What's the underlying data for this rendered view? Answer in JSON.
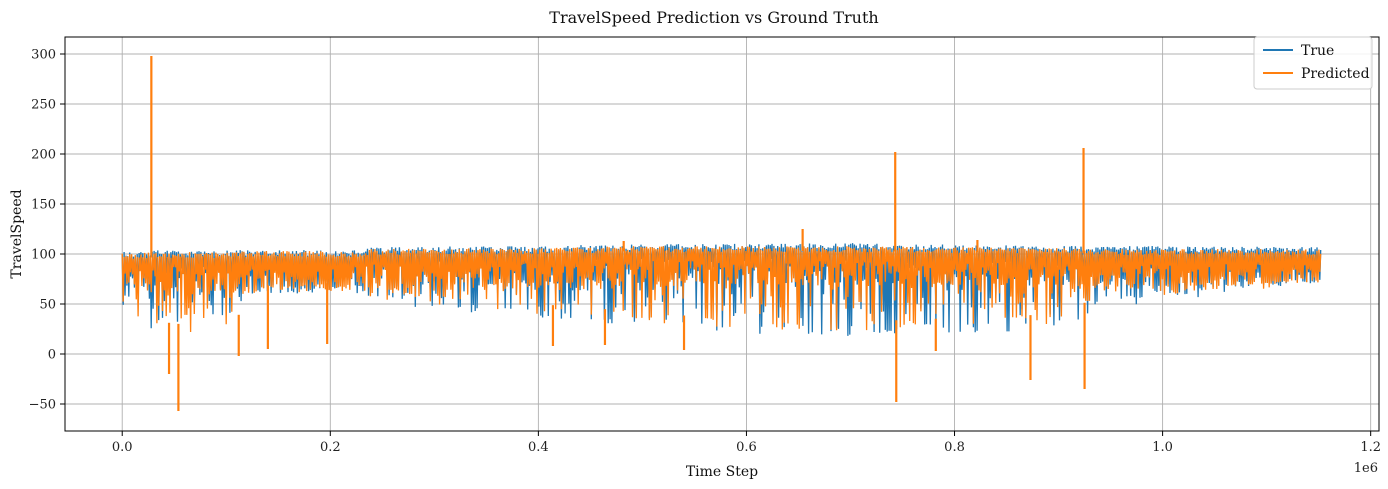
{
  "chart_data": {
    "type": "line",
    "title": "TravelSpeed Prediction vs Ground Truth",
    "xlabel": "Time Step",
    "ylabel": "TravelSpeed",
    "x_offset_label": "1e6",
    "xlim": [
      -55000,
      1208000
    ],
    "ylim": [
      -77,
      317
    ],
    "x_ticks": [
      0.0,
      0.2,
      0.4,
      0.6,
      0.8,
      1.0,
      1.2
    ],
    "x_tick_labels": [
      "0.0",
      "0.2",
      "0.4",
      "0.6",
      "0.8",
      "1.0",
      "1.2"
    ],
    "y_ticks": [
      -50,
      0,
      50,
      100,
      150,
      200,
      250,
      300
    ],
    "y_tick_labels": [
      "−50",
      "0",
      "50",
      "100",
      "150",
      "200",
      "250",
      "300"
    ],
    "grid": true,
    "legend_position": "top-right",
    "x_range": [
      0,
      1152000
    ],
    "series": [
      {
        "name": "True",
        "color": "#1f77b4",
        "envelope": [
          {
            "x": 0,
            "min": 28,
            "max": 103
          },
          {
            "x": 50000,
            "min": 15,
            "max": 104
          },
          {
            "x": 110000,
            "min": 18,
            "max": 104
          },
          {
            "x": 120000,
            "min": 55,
            "max": 104
          },
          {
            "x": 230000,
            "min": 60,
            "max": 104
          },
          {
            "x": 240000,
            "min": 50,
            "max": 107
          },
          {
            "x": 400000,
            "min": 35,
            "max": 108
          },
          {
            "x": 500000,
            "min": 28,
            "max": 110
          },
          {
            "x": 580000,
            "min": 20,
            "max": 110
          },
          {
            "x": 700000,
            "min": 18,
            "max": 111
          },
          {
            "x": 900000,
            "min": 24,
            "max": 108
          },
          {
            "x": 940000,
            "min": 45,
            "max": 108
          },
          {
            "x": 1000000,
            "min": 50,
            "max": 108
          },
          {
            "x": 1152000,
            "min": 78,
            "max": 107
          }
        ]
      },
      {
        "name": "Predicted",
        "color": "#ff7f0e",
        "envelope": [
          {
            "x": 0,
            "min": 32,
            "max": 101
          },
          {
            "x": 50000,
            "min": 20,
            "max": 102
          },
          {
            "x": 110000,
            "min": 22,
            "max": 102
          },
          {
            "x": 120000,
            "min": 58,
            "max": 103
          },
          {
            "x": 230000,
            "min": 62,
            "max": 103
          },
          {
            "x": 240000,
            "min": 55,
            "max": 105
          },
          {
            "x": 400000,
            "min": 40,
            "max": 106
          },
          {
            "x": 500000,
            "min": 32,
            "max": 108
          },
          {
            "x": 580000,
            "min": 25,
            "max": 108
          },
          {
            "x": 700000,
            "min": 22,
            "max": 108
          },
          {
            "x": 900000,
            "min": 30,
            "max": 106
          },
          {
            "x": 940000,
            "min": 48,
            "max": 105
          },
          {
            "x": 1000000,
            "min": 53,
            "max": 105
          },
          {
            "x": 1152000,
            "min": 82,
            "max": 105
          }
        ],
        "spikes": [
          {
            "x": 28000,
            "y": 298
          },
          {
            "x": 45000,
            "y": -20
          },
          {
            "x": 54000,
            "y": -57
          },
          {
            "x": 112000,
            "y": -2
          },
          {
            "x": 140000,
            "y": 5
          },
          {
            "x": 197000,
            "y": 10
          },
          {
            "x": 414000,
            "y": 8
          },
          {
            "x": 464000,
            "y": 9
          },
          {
            "x": 482000,
            "y": 113
          },
          {
            "x": 540000,
            "y": 4
          },
          {
            "x": 654000,
            "y": 125
          },
          {
            "x": 743000,
            "y": 202
          },
          {
            "x": 744000,
            "y": -48
          },
          {
            "x": 782000,
            "y": 3
          },
          {
            "x": 822000,
            "y": 114
          },
          {
            "x": 873000,
            "y": -26
          },
          {
            "x": 924000,
            "y": 206
          },
          {
            "x": 925000,
            "y": -35
          }
        ]
      }
    ]
  }
}
